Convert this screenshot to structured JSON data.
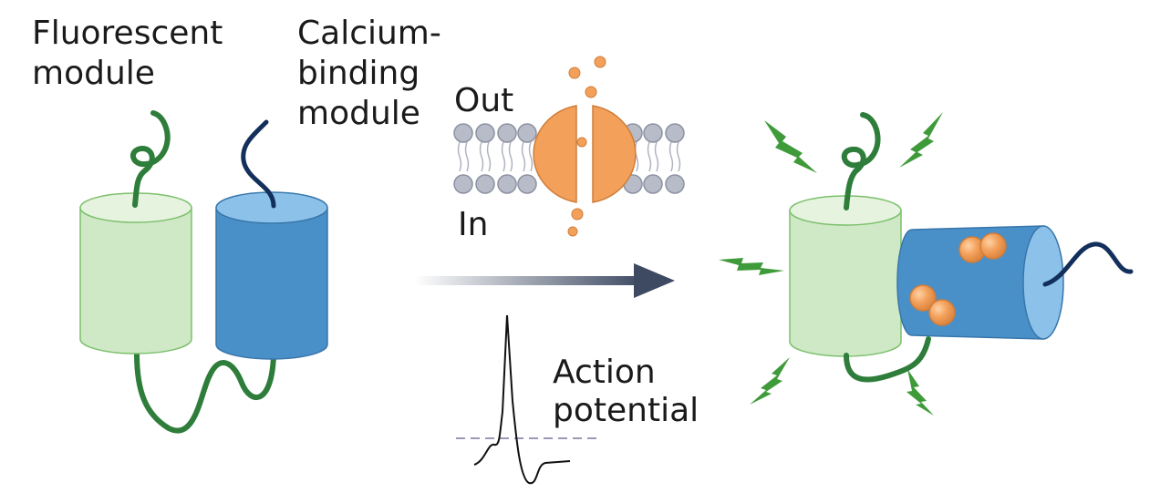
{
  "labels": {
    "fluorescent_line1": "Fluorescent",
    "fluorescent_line2": "module",
    "calcium_line1": "Calcium-",
    "calcium_line2": "binding",
    "calcium_line3": "module",
    "out": "Out",
    "in": "In",
    "action_line1": "Action",
    "action_line2": "potential"
  },
  "colors": {
    "fluorescent_fill": "#cfe8c6",
    "fluorescent_top": "#e6f3df",
    "fluorescent_stroke": "#7cc06c",
    "calcium_fill": "#4a90c8",
    "calcium_top": "#8cc2ea",
    "linker_green": "#2e7d3a",
    "linker_navy": "#13305c",
    "calcium_ion": "#f2a05a",
    "membrane_head": "#b8bcc8",
    "arrow": "#3e4a62",
    "flash": "#3f9b3a"
  }
}
